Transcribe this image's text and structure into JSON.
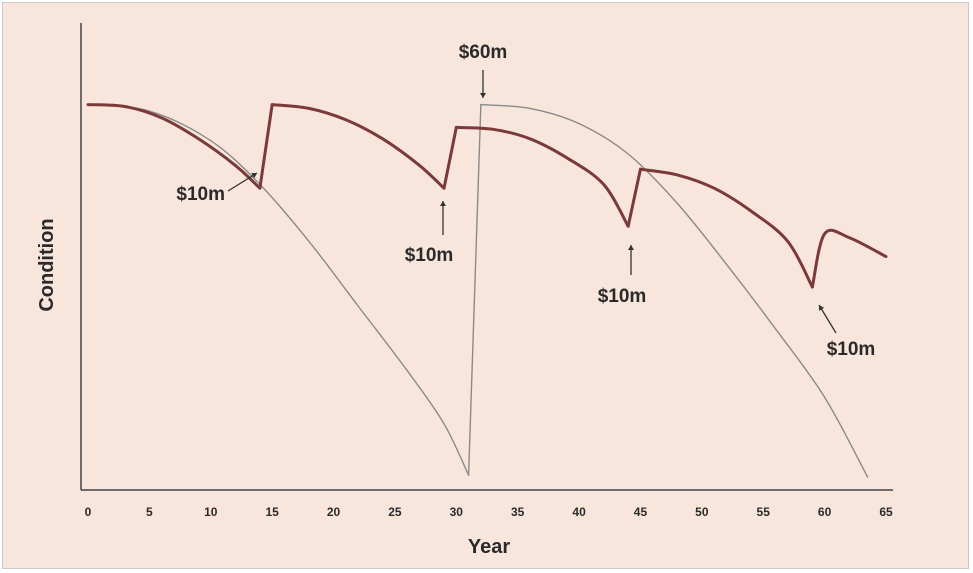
{
  "chart_data": {
    "type": "line",
    "title": "",
    "xlabel": "Year",
    "ylabel": "Condition",
    "xlim": [
      0,
      65
    ],
    "ylim": [
      0,
      100
    ],
    "x_ticks": [
      "0",
      "5",
      "10",
      "15",
      "20",
      "25",
      "30",
      "35",
      "40",
      "45",
      "50",
      "55",
      "60",
      "65"
    ],
    "grid": false,
    "legend": "none",
    "series": [
      {
        "style": "thick",
        "color": "#7a3a3a",
        "segments": [
          [
            [
              0,
              98
            ],
            [
              3,
              97.5
            ],
            [
              6,
              94.5
            ],
            [
              9,
              89
            ],
            [
              12,
              82
            ],
            [
              14,
              76
            ]
          ],
          [
            [
              14,
              76
            ],
            [
              15,
              98
            ]
          ],
          [
            [
              15,
              98
            ],
            [
              18,
              97
            ],
            [
              21,
              94
            ],
            [
              24,
              89
            ],
            [
              27,
              82
            ],
            [
              29,
              76
            ]
          ],
          [
            [
              29,
              76
            ],
            [
              30,
              92
            ]
          ],
          [
            [
              30,
              92
            ],
            [
              33,
              91.5
            ],
            [
              36,
              89
            ],
            [
              39,
              84
            ],
            [
              42,
              77
            ],
            [
              44,
              66
            ]
          ],
          [
            [
              44,
              66
            ],
            [
              45,
              81
            ]
          ],
          [
            [
              45,
              81
            ],
            [
              48,
              79.5
            ],
            [
              51,
              76
            ],
            [
              54,
              70
            ],
            [
              57,
              62
            ],
            [
              59,
              50
            ]
          ],
          [
            [
              59,
              50
            ],
            [
              60,
              64
            ],
            [
              62,
              63
            ],
            [
              65,
              58
            ]
          ]
        ]
      },
      {
        "style": "thin",
        "color": "#8a8a8a",
        "segments": [
          [
            [
              0,
              98
            ],
            [
              5,
              96.3
            ],
            [
              10,
              88.5
            ],
            [
              14,
              77
            ],
            [
              18,
              62
            ],
            [
              22,
              45
            ],
            [
              26,
              28
            ],
            [
              29,
              14
            ],
            [
              31,
              0.5
            ]
          ],
          [
            [
              31,
              0.5
            ],
            [
              32,
              98
            ]
          ],
          [
            [
              32,
              98
            ],
            [
              36,
              97
            ],
            [
              40,
              93
            ],
            [
              44,
              85
            ],
            [
              48,
              72
            ],
            [
              52,
              56
            ],
            [
              56,
              39
            ],
            [
              60,
              21
            ],
            [
              63.5,
              0
            ]
          ]
        ]
      }
    ],
    "annotations": [
      {
        "label": "$10m",
        "x": 14
      },
      {
        "label": "$10m",
        "x": 29
      },
      {
        "label": "$60m",
        "x": 32
      },
      {
        "label": "$10m",
        "x": 44
      },
      {
        "label": "$10m",
        "x": 59
      }
    ]
  }
}
